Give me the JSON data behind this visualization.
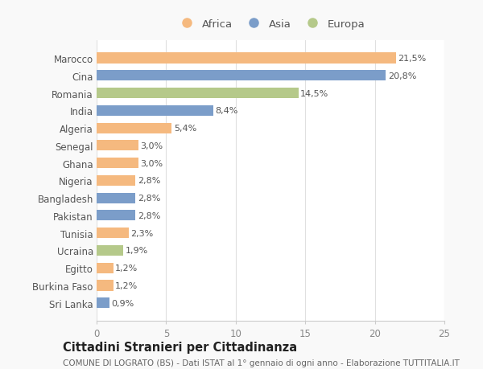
{
  "countries": [
    "Marocco",
    "Cina",
    "Romania",
    "India",
    "Algeria",
    "Senegal",
    "Ghana",
    "Nigeria",
    "Bangladesh",
    "Pakistan",
    "Tunisia",
    "Ucraina",
    "Egitto",
    "Burkina Faso",
    "Sri Lanka"
  ],
  "values": [
    21.5,
    20.8,
    14.5,
    8.4,
    5.4,
    3.0,
    3.0,
    2.8,
    2.8,
    2.8,
    2.3,
    1.9,
    1.2,
    1.2,
    0.9
  ],
  "labels": [
    "21,5%",
    "20,8%",
    "14,5%",
    "8,4%",
    "5,4%",
    "3,0%",
    "3,0%",
    "2,8%",
    "2,8%",
    "2,8%",
    "2,3%",
    "1,9%",
    "1,2%",
    "1,2%",
    "0,9%"
  ],
  "continents": [
    "Africa",
    "Asia",
    "Europa",
    "Asia",
    "Africa",
    "Africa",
    "Africa",
    "Africa",
    "Asia",
    "Asia",
    "Africa",
    "Europa",
    "Africa",
    "Africa",
    "Asia"
  ],
  "colors": {
    "Africa": "#F5B97F",
    "Asia": "#7B9DC9",
    "Europa": "#B5C98A"
  },
  "xlim": [
    0,
    25
  ],
  "xticks": [
    0,
    5,
    10,
    15,
    20,
    25
  ],
  "title": "Cittadini Stranieri per Cittadinanza",
  "subtitle": "COMUNE DI LOGRATO (BS) - Dati ISTAT al 1° gennaio di ogni anno - Elaborazione TUTTITALIA.IT",
  "background_color": "#f9f9f9",
  "plot_bg_color": "#ffffff",
  "grid_color": "#e0e0e0",
  "bar_height": 0.6,
  "bar_alpha": 1.0,
  "label_fontsize": 8,
  "ytick_fontsize": 8.5,
  "xtick_fontsize": 8.5,
  "legend_fontsize": 9.5,
  "title_fontsize": 10.5,
  "subtitle_fontsize": 7.5
}
